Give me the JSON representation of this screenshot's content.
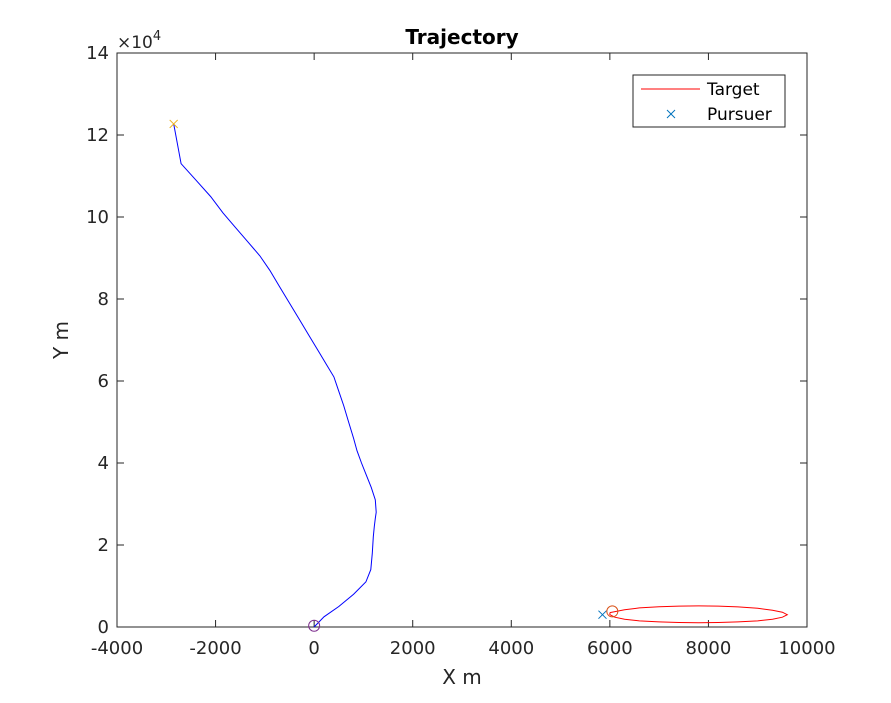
{
  "chart_data": {
    "type": "line",
    "title": "Trajectory",
    "xlabel": "X m",
    "ylabel": "Y m",
    "xlim": [
      -4000,
      10000
    ],
    "ylim": [
      0,
      140000
    ],
    "x_ticks": [
      -4000,
      -2000,
      0,
      2000,
      4000,
      6000,
      8000,
      10000
    ],
    "y_ticks": [
      0,
      20000,
      40000,
      60000,
      80000,
      100000,
      120000,
      140000
    ],
    "x_tick_labels": [
      "-4000",
      "-2000",
      "0",
      "2000",
      "4000",
      "6000",
      "8000",
      "10000"
    ],
    "y_tick_labels": [
      "0",
      "2",
      "4",
      "6",
      "8",
      "10",
      "12",
      "14"
    ],
    "y_exponent": {
      "base": "×10",
      "power": "4"
    },
    "grid": false,
    "legend_position": "top-right",
    "colors": {
      "target": "#ff0000",
      "pursuer_marker": "#0072bd",
      "path": "#0000ff",
      "pursuer_end_marker": "#edb120",
      "start_circle": "#7e2f8e",
      "target_start_circle": "#d95319"
    },
    "series": [
      {
        "name": "Target",
        "style": "line",
        "color": "#ff0000",
        "x": [
          6000,
          6300,
          6600,
          7000,
          7400,
          7800,
          8200,
          8600,
          9000,
          9300,
          9500,
          9600,
          9500,
          9300,
          9000,
          8600,
          8200,
          7800,
          7400,
          7000,
          6600,
          6300,
          6100,
          6000,
          6000
        ],
        "y": [
          3500,
          4200,
          4650,
          4950,
          5100,
          5150,
          5100,
          4900,
          4550,
          4100,
          3600,
          3000,
          2400,
          1900,
          1500,
          1250,
          1100,
          1050,
          1100,
          1250,
          1500,
          1900,
          2400,
          3000,
          3500
        ]
      },
      {
        "name": "Pursuer",
        "style": "marker-x",
        "color": "#0072bd",
        "x": [
          5850
        ],
        "y": [
          3000
        ]
      },
      {
        "name": "Pursuer path",
        "style": "line",
        "color": "#0000ff",
        "x": [
          0,
          200,
          500,
          800,
          1050,
          1150,
          1180,
          1200,
          1220,
          1240,
          1260,
          1240,
          1160,
          1060,
          960,
          870,
          800,
          700,
          600,
          500,
          400,
          250,
          100,
          -100,
          -300,
          -500,
          -700,
          -900,
          -1100,
          -1350,
          -1600,
          -1850,
          -2100,
          -2400,
          -2700,
          -2850
        ],
        "y": [
          0,
          2500,
          5000,
          8000,
          11000,
          14000,
          18000,
          22000,
          24500,
          26500,
          28000,
          31000,
          34000,
          37000,
          40000,
          43000,
          46000,
          50000,
          54000,
          57500,
          61000,
          64000,
          67000,
          71000,
          75000,
          79000,
          83000,
          87000,
          90500,
          94000,
          97500,
          101000,
          105000,
          109000,
          113000,
          122700
        ]
      },
      {
        "name": "Pursuer end",
        "style": "marker-x",
        "color": "#edb120",
        "x": [
          -2850
        ],
        "y": [
          122700
        ]
      },
      {
        "name": "Pursuer start",
        "style": "marker-circle",
        "color": "#7e2f8e",
        "x": [
          0
        ],
        "y": [
          300
        ]
      },
      {
        "name": "Target start",
        "style": "marker-circle",
        "color": "#d95319",
        "x": [
          6050
        ],
        "y": [
          3800
        ]
      }
    ],
    "legend": [
      {
        "label": "Target",
        "series": "Target"
      },
      {
        "label": "Pursuer",
        "series": "Pursuer"
      }
    ]
  }
}
